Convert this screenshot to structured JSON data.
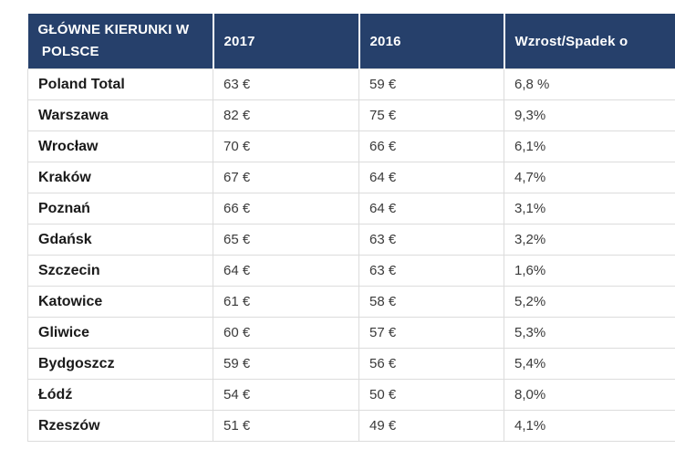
{
  "chart_data": {
    "type": "table",
    "title": "GŁÓWNE KIERUNKI W POLSCE",
    "columns": [
      "GŁÓWNE KIERUNKI W\n POLSCE",
      "2017",
      "2016",
      "Wzrost/Spadek o"
    ],
    "rows": [
      [
        "Poland Total",
        "63 €",
        "59 €",
        "6,8 %"
      ],
      [
        "Warszawa",
        "82 €",
        "75 €",
        "9,3%"
      ],
      [
        "Wrocław",
        "70 €",
        "66 €",
        "6,1%"
      ],
      [
        "Kraków",
        "67 €",
        "64 €",
        "4,7%"
      ],
      [
        "Poznań",
        "66 €",
        "64 €",
        "3,1%"
      ],
      [
        "Gdańsk",
        "65 €",
        "63 €",
        "3,2%"
      ],
      [
        "Szczecin",
        "64 €",
        "63 €",
        "1,6%"
      ],
      [
        "Katowice",
        "61 €",
        "58 €",
        "5,2%"
      ],
      [
        "Gliwice",
        "60 €",
        "57 €",
        "5,3%"
      ],
      [
        "Bydgoszcz",
        "59 €",
        "56 €",
        "5,4%"
      ],
      [
        "Łódź",
        "54 €",
        "50 €",
        "8,0%"
      ],
      [
        "Rzeszów",
        "51 €",
        "49 €",
        "4,1%"
      ]
    ],
    "units": {
      "value_columns": "EUR",
      "change_column": "percent"
    },
    "colors": {
      "header_bg": "#26406b",
      "header_text": "#ffffff",
      "body_border": "#dcdcdc",
      "name_text": "#1a1a1a",
      "value_text": "#3a3a3a"
    },
    "layout": {
      "grid": true,
      "header_separator": "white-2px"
    }
  }
}
